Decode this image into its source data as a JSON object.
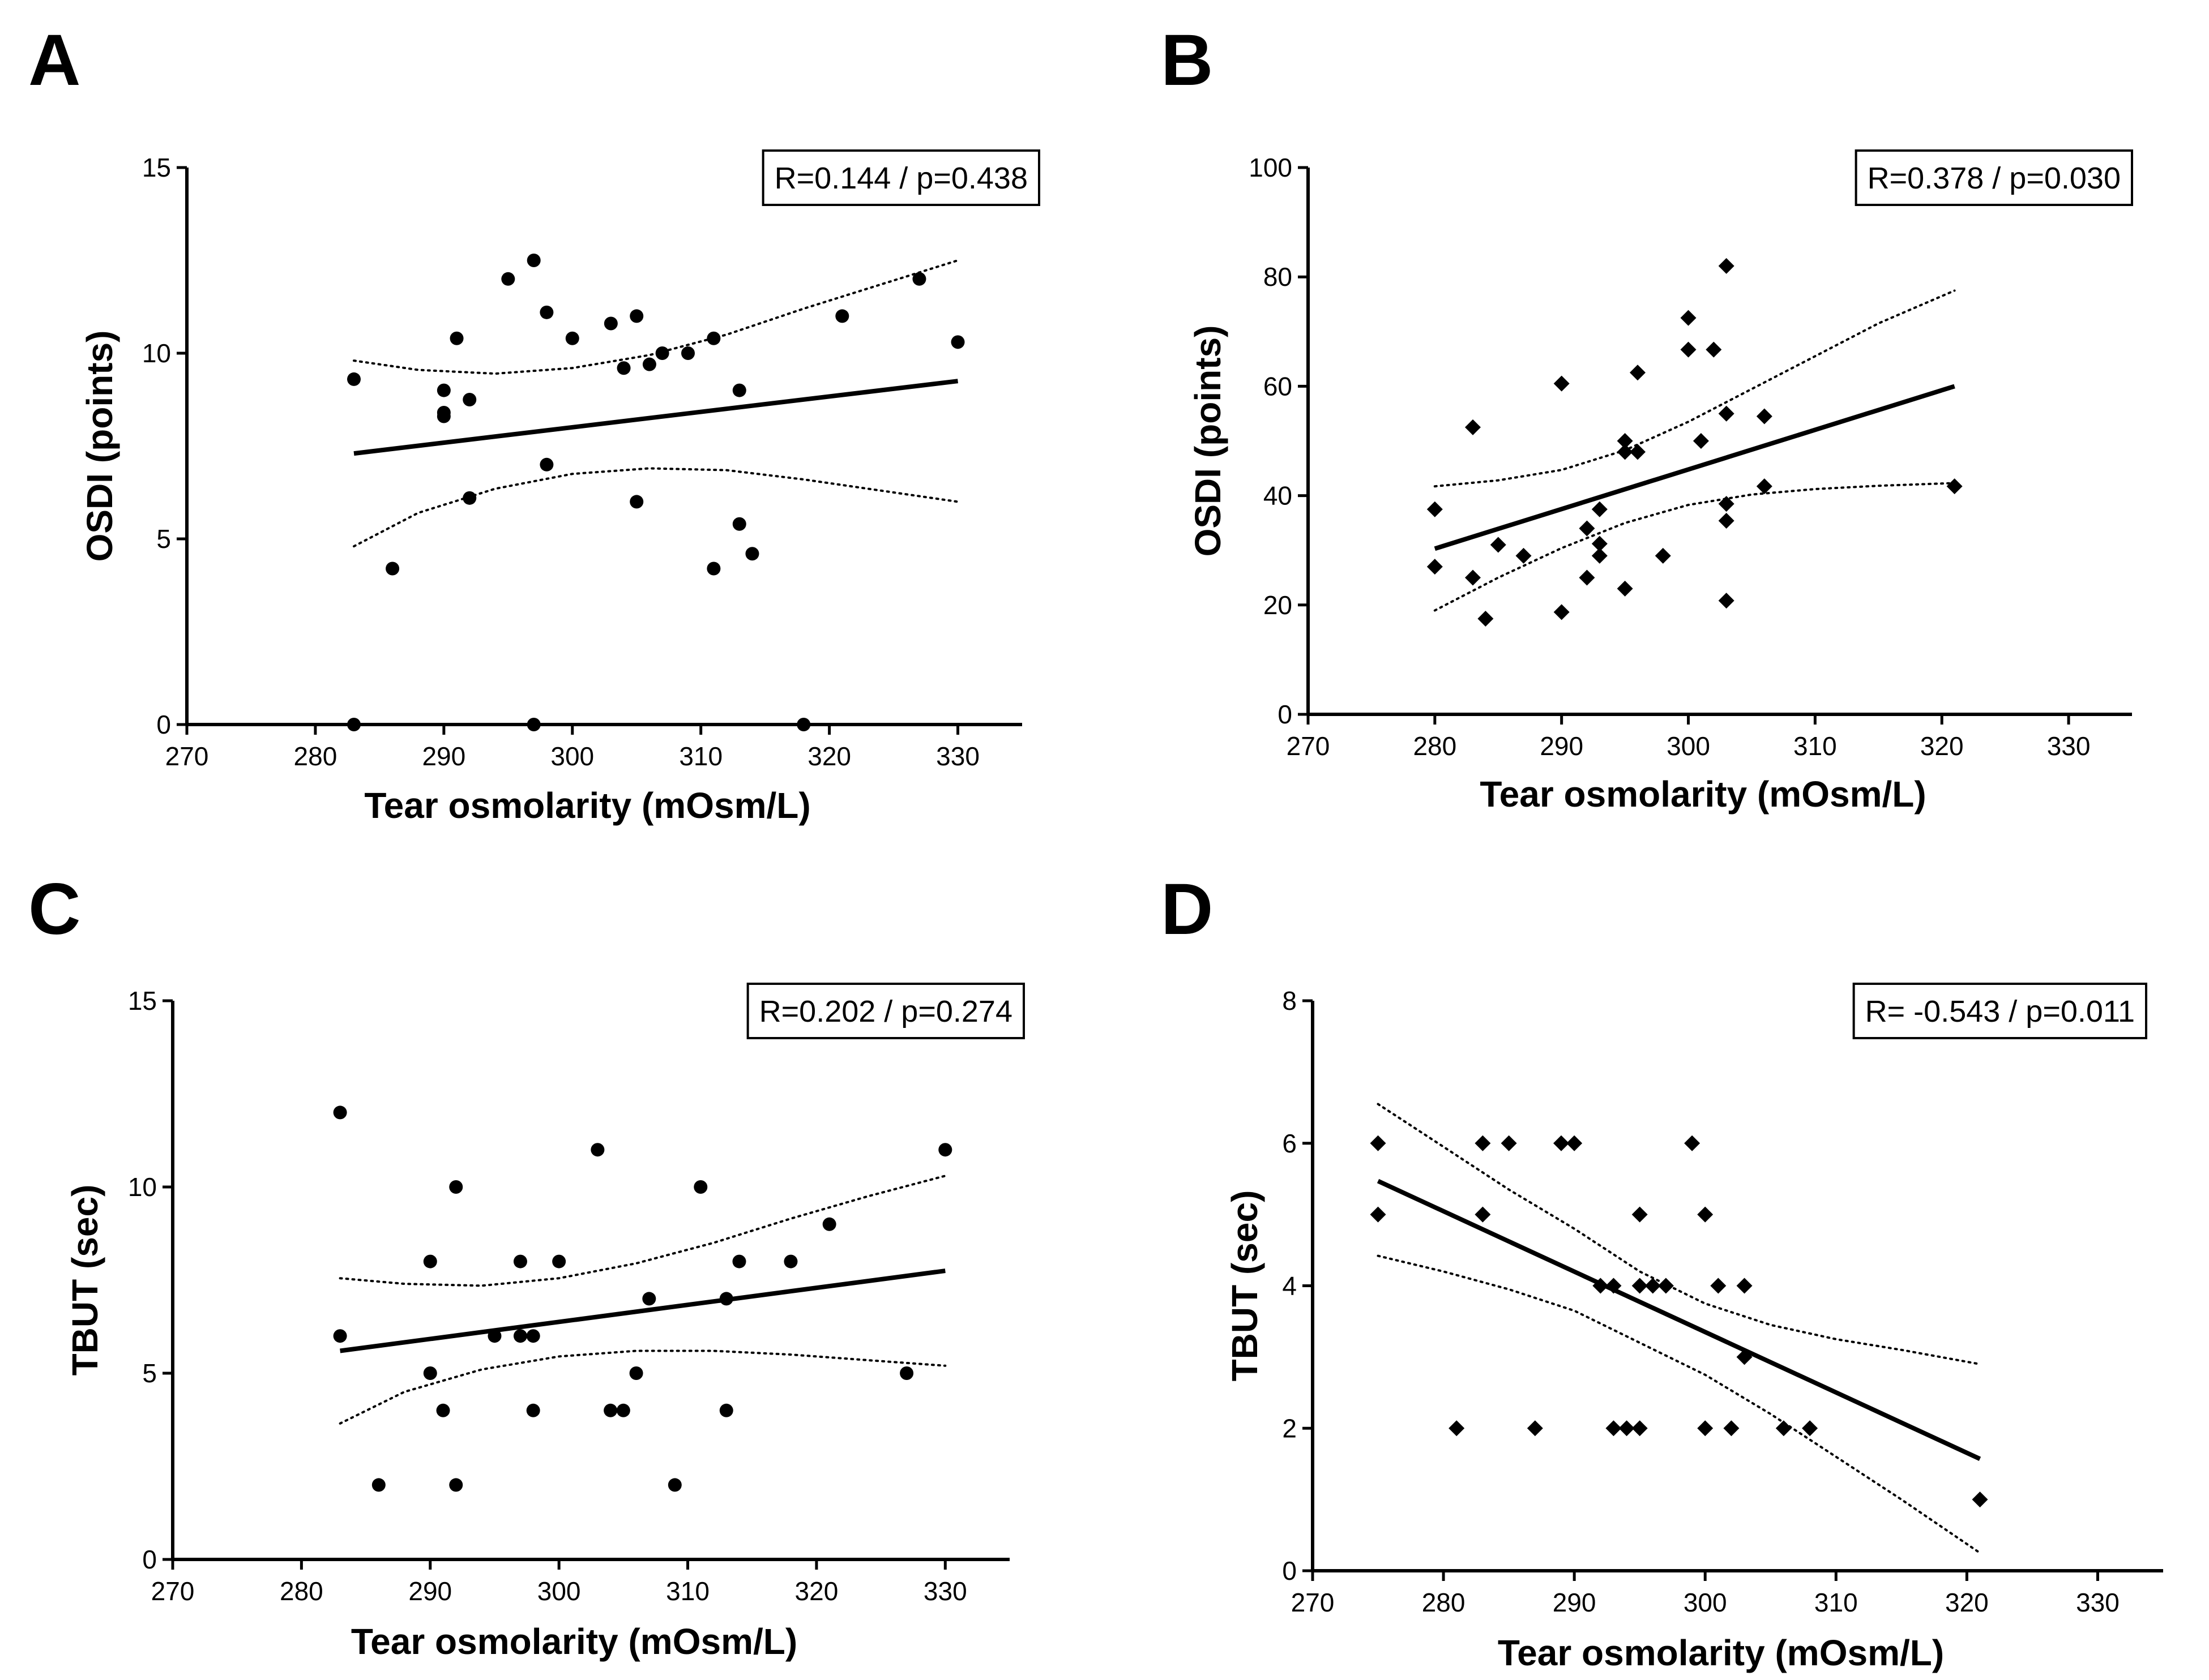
{
  "chart_data": [
    {
      "type": "scatter",
      "panel": "A",
      "xlabel": "Tear osmolarity (mOsm/L)",
      "ylabel": "OSDI (points)",
      "xlim": [
        270,
        335
      ],
      "ylim": [
        0,
        15
      ],
      "xticks": [
        270,
        280,
        290,
        300,
        310,
        320,
        330
      ],
      "yticks": [
        0,
        5,
        10,
        15
      ],
      "marker": "circle",
      "stat": "R=0.144 / p=0.438",
      "stat_position": "top-right",
      "fit": {
        "x": [
          283,
          330
        ],
        "y": [
          7.3,
          9.25
        ]
      },
      "ci_upper": {
        "x": [
          283,
          288,
          294,
          300,
          306,
          312,
          318,
          324,
          330
        ],
        "y": [
          9.8,
          9.55,
          9.45,
          9.6,
          9.95,
          10.5,
          11.2,
          11.85,
          12.5
        ]
      },
      "ci_lower": {
        "x": [
          283,
          288,
          294,
          300,
          306,
          312,
          318,
          324,
          330
        ],
        "y": [
          4.8,
          5.7,
          6.35,
          6.75,
          6.9,
          6.85,
          6.6,
          6.3,
          6.0
        ]
      },
      "points": [
        {
          "x": 283,
          "y": 9.3
        },
        {
          "x": 283,
          "y": 0
        },
        {
          "x": 286,
          "y": 4.2
        },
        {
          "x": 290,
          "y": 9.0
        },
        {
          "x": 290,
          "y": 8.4
        },
        {
          "x": 290,
          "y": 8.3
        },
        {
          "x": 291,
          "y": 10.4
        },
        {
          "x": 292,
          "y": 8.75
        },
        {
          "x": 292,
          "y": 6.1
        },
        {
          "x": 295,
          "y": 12.0
        },
        {
          "x": 297,
          "y": 12.5
        },
        {
          "x": 297,
          "y": 0
        },
        {
          "x": 298,
          "y": 11.1
        },
        {
          "x": 298,
          "y": 7.0
        },
        {
          "x": 300,
          "y": 10.4
        },
        {
          "x": 303,
          "y": 10.8
        },
        {
          "x": 304,
          "y": 9.6
        },
        {
          "x": 305,
          "y": 11.0
        },
        {
          "x": 305,
          "y": 6.0
        },
        {
          "x": 306,
          "y": 9.7
        },
        {
          "x": 307,
          "y": 10.0
        },
        {
          "x": 309,
          "y": 10.0
        },
        {
          "x": 311,
          "y": 10.4
        },
        {
          "x": 311,
          "y": 4.2
        },
        {
          "x": 313,
          "y": 9.0
        },
        {
          "x": 313,
          "y": 5.4
        },
        {
          "x": 314,
          "y": 4.6
        },
        {
          "x": 318,
          "y": 0
        },
        {
          "x": 321,
          "y": 11.0
        },
        {
          "x": 327,
          "y": 12.0
        },
        {
          "x": 330,
          "y": 10.3
        }
      ]
    },
    {
      "type": "scatter",
      "panel": "B",
      "xlabel": "Tear osmolarity (mOsm/L)",
      "ylabel": "OSDI (points)",
      "xlim": [
        270,
        335
      ],
      "ylim": [
        0,
        100
      ],
      "xticks": [
        270,
        280,
        290,
        300,
        310,
        320,
        330
      ],
      "yticks": [
        0,
        20,
        40,
        60,
        80,
        100
      ],
      "marker": "diamond",
      "stat": "R=0.378 / p=0.030",
      "stat_position": "top-right",
      "fit": {
        "x": [
          280,
          321
        ],
        "y": [
          30.3,
          60
        ]
      },
      "ci_upper": {
        "x": [
          280,
          285,
          290,
          295,
          300,
          305,
          310,
          315,
          321
        ],
        "y": [
          41.7,
          42.8,
          44.7,
          48.3,
          53.5,
          59.5,
          65.5,
          71.5,
          77.5
        ]
      },
      "ci_lower": {
        "x": [
          280,
          285,
          290,
          295,
          300,
          305,
          310,
          315,
          321
        ],
        "y": [
          19,
          25,
          30.4,
          35,
          38.3,
          40.2,
          41.2,
          41.8,
          42.3
        ]
      },
      "points": [
        {
          "x": 280,
          "y": 37.5
        },
        {
          "x": 280,
          "y": 27
        },
        {
          "x": 283,
          "y": 52.5
        },
        {
          "x": 283,
          "y": 25
        },
        {
          "x": 284,
          "y": 17.5
        },
        {
          "x": 285,
          "y": 31
        },
        {
          "x": 287,
          "y": 29
        },
        {
          "x": 290,
          "y": 60.5
        },
        {
          "x": 290,
          "y": 18.7
        },
        {
          "x": 292,
          "y": 34
        },
        {
          "x": 292,
          "y": 25
        },
        {
          "x": 293,
          "y": 37.5
        },
        {
          "x": 293,
          "y": 31.2
        },
        {
          "x": 293,
          "y": 29
        },
        {
          "x": 295,
          "y": 50
        },
        {
          "x": 295,
          "y": 48
        },
        {
          "x": 295,
          "y": 23
        },
        {
          "x": 296,
          "y": 62.5
        },
        {
          "x": 296,
          "y": 48
        },
        {
          "x": 298,
          "y": 29
        },
        {
          "x": 300,
          "y": 72.5
        },
        {
          "x": 300,
          "y": 66.7
        },
        {
          "x": 301,
          "y": 50
        },
        {
          "x": 302,
          "y": 66.7
        },
        {
          "x": 303,
          "y": 82
        },
        {
          "x": 303,
          "y": 55
        },
        {
          "x": 303,
          "y": 38.5
        },
        {
          "x": 303,
          "y": 35.4
        },
        {
          "x": 303,
          "y": 20.8
        },
        {
          "x": 306,
          "y": 54.5
        },
        {
          "x": 306,
          "y": 41.7
        },
        {
          "x": 321,
          "y": 41.7
        }
      ]
    },
    {
      "type": "scatter",
      "panel": "C",
      "xlabel": "Tear osmolarity (mOsm/L)",
      "ylabel": "TBUT (sec)",
      "xlim": [
        270,
        335
      ],
      "ylim": [
        0,
        15
      ],
      "xticks": [
        270,
        280,
        290,
        300,
        310,
        320,
        330
      ],
      "yticks": [
        0,
        5,
        10,
        15
      ],
      "marker": "circle",
      "stat": "R=0.202 / p=0.274",
      "stat_position": "top-right",
      "fit": {
        "x": [
          283,
          330
        ],
        "y": [
          5.6,
          7.75
        ]
      },
      "ci_upper": {
        "x": [
          283,
          288,
          294,
          300,
          306,
          312,
          318,
          324,
          330
        ],
        "y": [
          7.55,
          7.4,
          7.35,
          7.55,
          7.95,
          8.5,
          9.15,
          9.75,
          10.3
        ]
      },
      "ci_lower": {
        "x": [
          283,
          288,
          294,
          300,
          306,
          312,
          318,
          324,
          330
        ],
        "y": [
          3.65,
          4.5,
          5.1,
          5.45,
          5.6,
          5.6,
          5.5,
          5.35,
          5.2
        ]
      },
      "points": [
        {
          "x": 283,
          "y": 12
        },
        {
          "x": 283,
          "y": 6
        },
        {
          "x": 286,
          "y": 2
        },
        {
          "x": 290,
          "y": 8
        },
        {
          "x": 290,
          "y": 5
        },
        {
          "x": 291,
          "y": 4
        },
        {
          "x": 292,
          "y": 10
        },
        {
          "x": 292,
          "y": 2
        },
        {
          "x": 295,
          "y": 6
        },
        {
          "x": 297,
          "y": 8
        },
        {
          "x": 297,
          "y": 6
        },
        {
          "x": 298,
          "y": 6
        },
        {
          "x": 298,
          "y": 4
        },
        {
          "x": 300,
          "y": 8
        },
        {
          "x": 303,
          "y": 11
        },
        {
          "x": 304,
          "y": 4
        },
        {
          "x": 305,
          "y": 4
        },
        {
          "x": 306,
          "y": 5
        },
        {
          "x": 307,
          "y": 7
        },
        {
          "x": 309,
          "y": 2
        },
        {
          "x": 311,
          "y": 10
        },
        {
          "x": 313,
          "y": 7
        },
        {
          "x": 313,
          "y": 4
        },
        {
          "x": 314,
          "y": 8
        },
        {
          "x": 318,
          "y": 8
        },
        {
          "x": 321,
          "y": 9
        },
        {
          "x": 327,
          "y": 5
        },
        {
          "x": 330,
          "y": 11
        }
      ]
    },
    {
      "type": "scatter",
      "panel": "D",
      "xlabel": "Tear osmolarity (mOsm/L)",
      "ylabel": "TBUT (sec)",
      "xlim": [
        270,
        335
      ],
      "ylim": [
        0,
        8
      ],
      "xticks": [
        270,
        280,
        290,
        300,
        310,
        320,
        330
      ],
      "yticks": [
        0,
        2,
        4,
        6,
        8
      ],
      "marker": "diamond",
      "stat": "R= -0.543 / p=0.011",
      "stat_position": "top-right",
      "fit": {
        "x": [
          275,
          321
        ],
        "y": [
          5.47,
          1.57
        ]
      },
      "ci_upper": {
        "x": [
          275,
          280,
          285,
          290,
          295,
          300,
          305,
          310,
          315,
          321
        ],
        "y": [
          6.55,
          5.95,
          5.35,
          4.8,
          4.2,
          3.75,
          3.45,
          3.25,
          3.1,
          2.9
        ]
      },
      "ci_lower": {
        "x": [
          275,
          280,
          285,
          290,
          295,
          300,
          305,
          310,
          315,
          321
        ],
        "y": [
          4.42,
          4.2,
          3.95,
          3.65,
          3.2,
          2.75,
          2.2,
          1.6,
          1.0,
          0.25
        ]
      },
      "points": [
        {
          "x": 275,
          "y": 6
        },
        {
          "x": 275,
          "y": 5
        },
        {
          "x": 281,
          "y": 2
        },
        {
          "x": 283,
          "y": 6
        },
        {
          "x": 283,
          "y": 5
        },
        {
          "x": 285,
          "y": 6
        },
        {
          "x": 287,
          "y": 2
        },
        {
          "x": 289,
          "y": 6
        },
        {
          "x": 290,
          "y": 6
        },
        {
          "x": 292,
          "y": 4
        },
        {
          "x": 293,
          "y": 4
        },
        {
          "x": 293,
          "y": 2
        },
        {
          "x": 294,
          "y": 2
        },
        {
          "x": 295,
          "y": 5
        },
        {
          "x": 295,
          "y": 4
        },
        {
          "x": 295,
          "y": 2
        },
        {
          "x": 296,
          "y": 4
        },
        {
          "x": 297,
          "y": 4
        },
        {
          "x": 299,
          "y": 6
        },
        {
          "x": 300,
          "y": 5
        },
        {
          "x": 300,
          "y": 2
        },
        {
          "x": 301,
          "y": 4
        },
        {
          "x": 302,
          "y": 2
        },
        {
          "x": 303,
          "y": 4
        },
        {
          "x": 303,
          "y": 3
        },
        {
          "x": 306,
          "y": 2
        },
        {
          "x": 308,
          "y": 2
        },
        {
          "x": 321,
          "y": 1
        }
      ]
    }
  ]
}
